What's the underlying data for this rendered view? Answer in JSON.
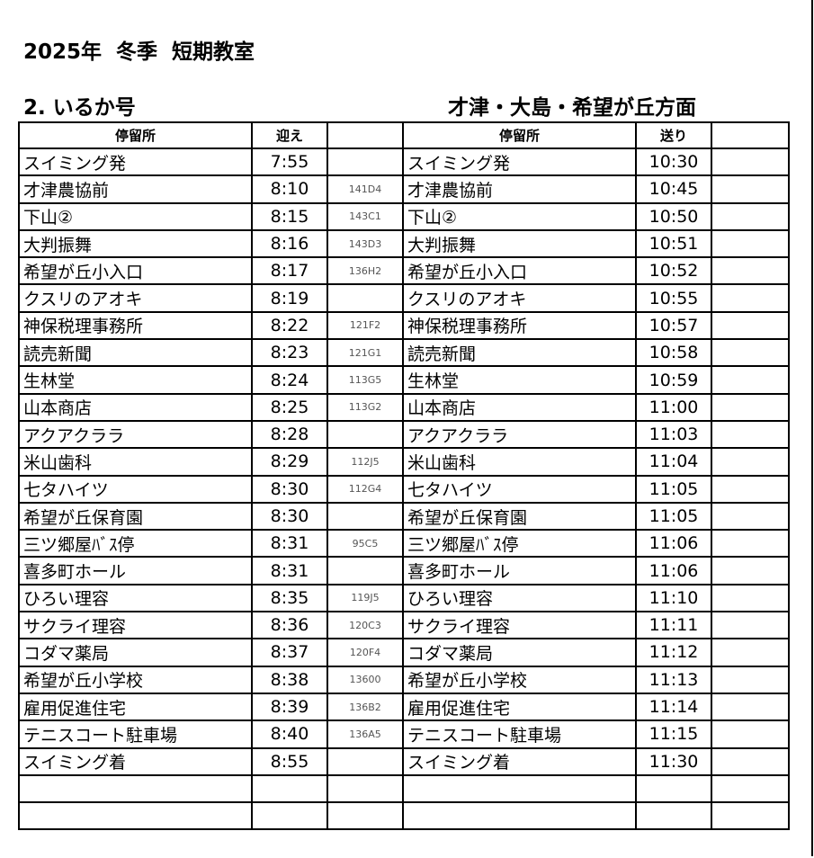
{
  "title": "2025年  冬季  短期教室",
  "route": "2. いるか号",
  "direction": "才津・大島・希望が丘方面",
  "headers": {
    "stop_left": "停留所",
    "pickup": "迎え",
    "code": "",
    "stop_right": "停留所",
    "dropoff": "送り",
    "extra": ""
  },
  "rows": [
    {
      "stop": "スイミング発",
      "pickup": "7:55",
      "code": "",
      "stop2": "スイミング発",
      "dropoff": "10:30"
    },
    {
      "stop": "才津農協前",
      "pickup": "8:10",
      "code": "141D4",
      "stop2": "才津農協前",
      "dropoff": "10:45"
    },
    {
      "stop": "下山②",
      "pickup": "8:15",
      "code": "143C1",
      "stop2": "下山②",
      "dropoff": "10:50"
    },
    {
      "stop": "大判振舞",
      "pickup": "8:16",
      "code": "143D3",
      "stop2": "大判振舞",
      "dropoff": "10:51"
    },
    {
      "stop": "希望が丘小入口",
      "pickup": "8:17",
      "code": "136H2",
      "stop2": "希望が丘小入口",
      "dropoff": "10:52"
    },
    {
      "stop": "クスリのアオキ",
      "pickup": "8:19",
      "code": "",
      "stop2": "クスリのアオキ",
      "dropoff": "10:55"
    },
    {
      "stop": "神保税理事務所",
      "pickup": "8:22",
      "code": "121F2",
      "stop2": "神保税理事務所",
      "dropoff": "10:57"
    },
    {
      "stop": "読売新聞",
      "pickup": "8:23",
      "code": "121G1",
      "stop2": "読売新聞",
      "dropoff": "10:58"
    },
    {
      "stop": "生林堂",
      "pickup": "8:24",
      "code": "113G5",
      "stop2": "生林堂",
      "dropoff": "10:59"
    },
    {
      "stop": "山本商店",
      "pickup": "8:25",
      "code": "113G2",
      "stop2": "山本商店",
      "dropoff": "11:00"
    },
    {
      "stop": "アクアクララ",
      "pickup": "8:28",
      "code": "",
      "stop2": "アクアクララ",
      "dropoff": "11:03"
    },
    {
      "stop": "米山歯科",
      "pickup": "8:29",
      "code": "112J5",
      "stop2": "米山歯科",
      "dropoff": "11:04"
    },
    {
      "stop": "七タハイツ",
      "pickup": "8:30",
      "code": "112G4",
      "stop2": "七タハイツ",
      "dropoff": "11:05"
    },
    {
      "stop": "希望が丘保育園",
      "pickup": "8:30",
      "code": "",
      "stop2": "希望が丘保育園",
      "dropoff": "11:05"
    },
    {
      "stop": "三ツ郷屋ﾊﾞｽ停",
      "pickup": "8:31",
      "code": "95C5",
      "stop2": "三ツ郷屋ﾊﾞｽ停",
      "dropoff": "11:06"
    },
    {
      "stop": "喜多町ホール",
      "pickup": "8:31",
      "code": "",
      "stop2": "喜多町ホール",
      "dropoff": "11:06"
    },
    {
      "stop": "ひろい理容",
      "pickup": "8:35",
      "code": "119J5",
      "stop2": "ひろい理容",
      "dropoff": "11:10"
    },
    {
      "stop": "サクライ理容",
      "pickup": "8:36",
      "code": "120C3",
      "stop2": "サクライ理容",
      "dropoff": "11:11"
    },
    {
      "stop": "コダマ薬局",
      "pickup": "8:37",
      "code": "120F4",
      "stop2": "コダマ薬局",
      "dropoff": "11:12"
    },
    {
      "stop": "希望が丘小学校",
      "pickup": "8:38",
      "code": "13600",
      "stop2": "希望が丘小学校",
      "dropoff": "11:13"
    },
    {
      "stop": "雇用促進住宅",
      "pickup": "8:39",
      "code": "136B2",
      "stop2": "雇用促進住宅",
      "dropoff": "11:14"
    },
    {
      "stop": "テニスコート駐車場",
      "pickup": "8:40",
      "code": "136A5",
      "stop2": "テニスコート駐車場",
      "dropoff": "11:15"
    },
    {
      "stop": "スイミング着",
      "pickup": "8:55",
      "code": "",
      "stop2": "スイミング着",
      "dropoff": "11:30"
    },
    {
      "stop": "",
      "pickup": "",
      "code": "",
      "stop2": "",
      "dropoff": ""
    },
    {
      "stop": "",
      "pickup": "",
      "code": "",
      "stop2": "",
      "dropoff": ""
    }
  ]
}
